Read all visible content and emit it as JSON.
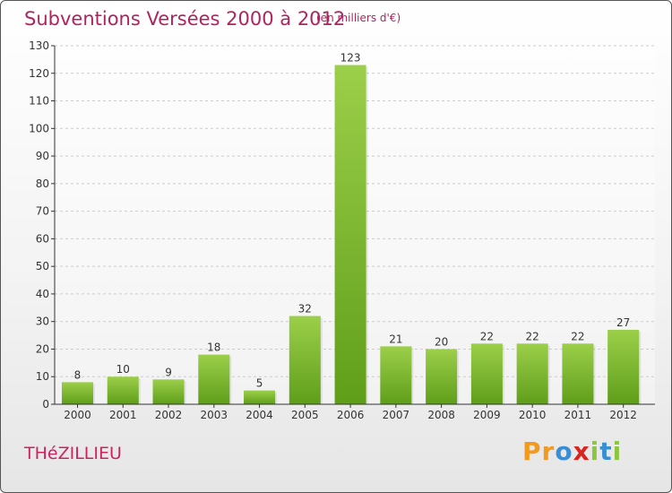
{
  "page": {
    "title": "Subventions Versées 2000 à 2012",
    "subtitle": "(en milliers d'€)",
    "commune": "THéZILLIEU",
    "logo": {
      "letters": [
        "P",
        "r",
        "o",
        "x",
        "i",
        "t",
        "i"
      ],
      "colors": [
        "#f39a1e",
        "#f39a1e",
        "#3a8fd4",
        "#d6261f",
        "#8cc63f",
        "#3a8fd4",
        "#8cc63f"
      ]
    }
  },
  "chart_data": {
    "type": "bar",
    "title": "Subventions Versées 2000 à 2012",
    "subtitle": "(en milliers d'€)",
    "categories": [
      "2000",
      "2001",
      "2002",
      "2003",
      "2004",
      "2005",
      "2006",
      "2007",
      "2008",
      "2009",
      "2010",
      "2011",
      "2012"
    ],
    "values": [
      8,
      10,
      9,
      18,
      5,
      32,
      123,
      21,
      20,
      22,
      22,
      22,
      27
    ],
    "ylim": [
      0,
      130
    ],
    "yticks": [
      0,
      10,
      20,
      30,
      40,
      50,
      60,
      70,
      80,
      90,
      100,
      110,
      120,
      130
    ],
    "grid": true,
    "bar_color_top": "#9ccf4a",
    "bar_color_bottom": "#5f9e1a"
  }
}
